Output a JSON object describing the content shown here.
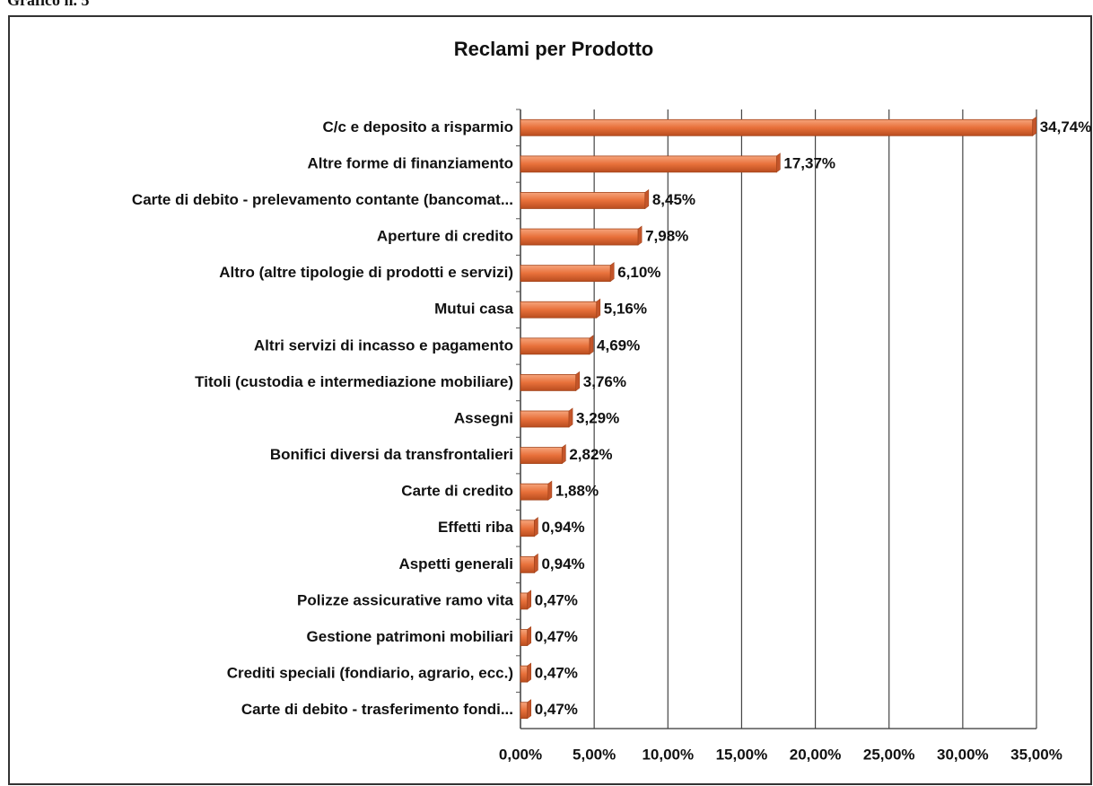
{
  "caption": "Grafico n. 5",
  "chart_data": {
    "type": "bar",
    "orientation": "horizontal",
    "title": "Reclami per Prodotto",
    "categories": [
      "C/c e deposito a risparmio",
      "Altre forme di finanziamento",
      "Carte di debito - prelevamento contante (bancomat...",
      "Aperture di credito",
      "Altro (altre tipologie di prodotti e servizi)",
      "Mutui casa",
      "Altri servizi di incasso e pagamento",
      "Titoli (custodia e intermediazione mobiliare)",
      "Assegni",
      "Bonifici diversi da transfrontalieri",
      "Carte di credito",
      "Effetti riba",
      "Aspetti generali",
      "Polizze assicurative ramo vita",
      "Gestione patrimoni mobiliari",
      "Crediti speciali (fondiario, agrario, ecc.)",
      "Carte di debito - trasferimento fondi..."
    ],
    "values": [
      34.74,
      17.37,
      8.45,
      7.98,
      6.1,
      5.16,
      4.69,
      3.76,
      3.29,
      2.82,
      1.88,
      0.94,
      0.94,
      0.47,
      0.47,
      0.47,
      0.47
    ],
    "value_labels": [
      "34,74%",
      "17,37%",
      "8,45%",
      "7,98%",
      "6,10%",
      "5,16%",
      "4,69%",
      "3,76%",
      "3,29%",
      "2,82%",
      "1,88%",
      "0,94%",
      "0,94%",
      "0,47%",
      "0,47%",
      "0,47%",
      "0,47%"
    ],
    "color": "#e8703a",
    "xlim": [
      0,
      35
    ],
    "xticks": [
      {
        "value": 0,
        "label": "0,00%"
      },
      {
        "value": 5,
        "label": "5,00%"
      },
      {
        "value": 10,
        "label": "10,00%"
      },
      {
        "value": 15,
        "label": "15,00%"
      },
      {
        "value": 20,
        "label": "20,00%"
      },
      {
        "value": 25,
        "label": "25,00%"
      },
      {
        "value": 30,
        "label": "30,00%"
      },
      {
        "value": 35,
        "label": "35,00%"
      }
    ],
    "grid": true
  }
}
